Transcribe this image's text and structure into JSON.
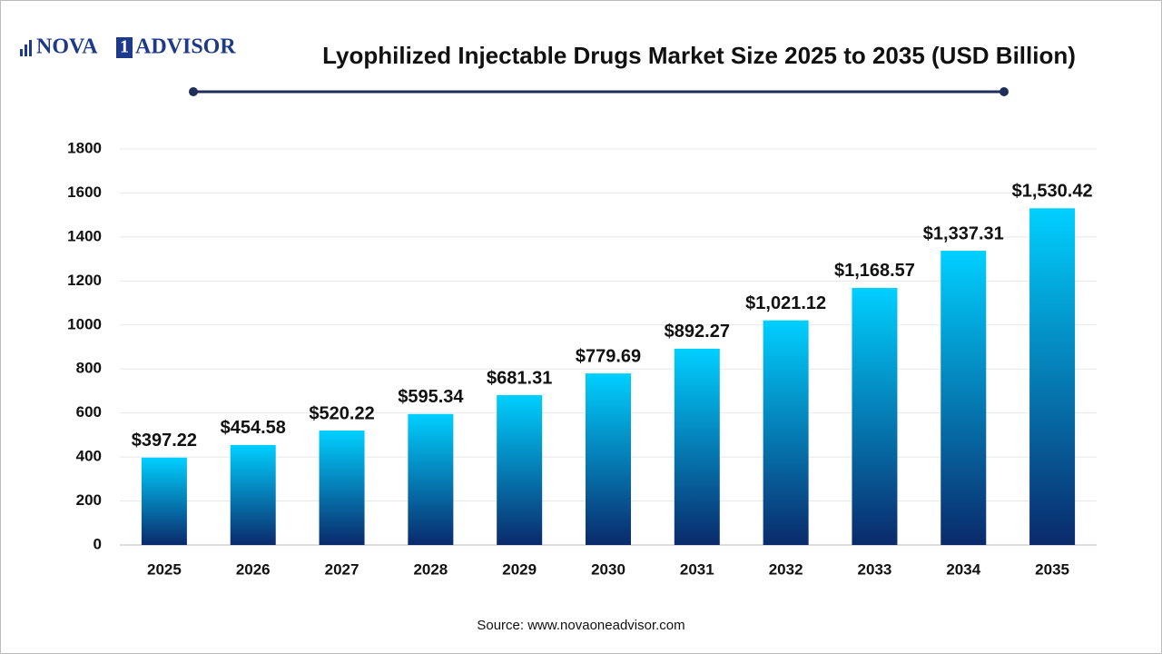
{
  "logo": {
    "left": "NOVA",
    "box": "1",
    "right": "ADVISOR"
  },
  "chart_data": {
    "type": "bar",
    "title": "Lyophilized Injectable Drugs Market Size 2025 to 2035 (USD Billion)",
    "categories": [
      "2025",
      "2026",
      "2027",
      "2028",
      "2029",
      "2030",
      "2031",
      "2032",
      "2033",
      "2034",
      "2035"
    ],
    "values": [
      397.22,
      454.58,
      520.22,
      595.34,
      681.31,
      779.69,
      892.27,
      1021.12,
      1168.57,
      1337.31,
      1530.42
    ],
    "value_labels": [
      "$397.22",
      "$454.58",
      "$520.22",
      "$595.34",
      "$681.31",
      "$779.69",
      "$892.27",
      "$1,021.12",
      "$1,168.57",
      "$1,337.31",
      "$1,530.42"
    ],
    "color_top": "#00d0ff",
    "color_bottom": "#0a2a6b",
    "ylim": [
      0,
      1800
    ],
    "yticks": [
      0,
      200,
      400,
      600,
      800,
      1000,
      1200,
      1400,
      1600,
      1800
    ],
    "grid": true,
    "source": "Source: www.novaoneadvisor.com"
  }
}
